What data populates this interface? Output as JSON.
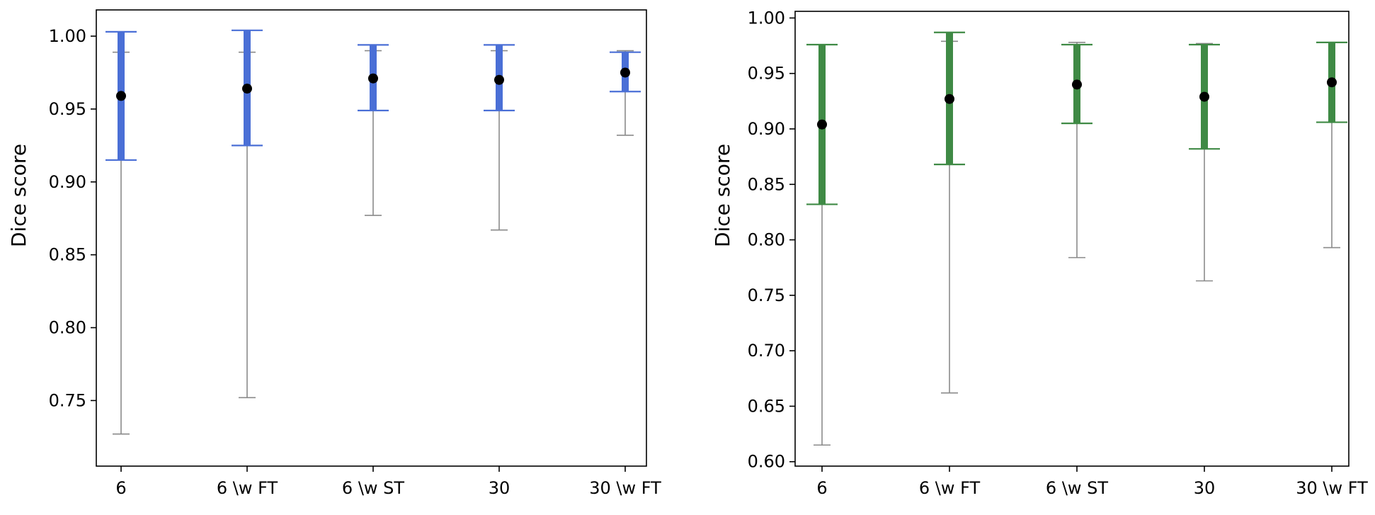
{
  "chart_data": [
    {
      "type": "errorbar",
      "categories": [
        "6",
        "6 \\w FT",
        "6 \\w ST",
        "30",
        "30 \\w FT"
      ],
      "ylabel": "Dice score",
      "xlabel": "",
      "ylim": [
        0.705,
        1.018
      ],
      "yticks": [
        "0.75",
        "0.80",
        "0.85",
        "0.90",
        "0.95",
        "1.00"
      ],
      "color": "#4a6fd6",
      "grid": false,
      "series": [
        {
          "mean": [
            0.959,
            0.964,
            0.971,
            0.97,
            0.975
          ],
          "box_low": [
            0.915,
            0.925,
            0.949,
            0.949,
            0.962
          ],
          "box_high": [
            1.003,
            1.004,
            0.994,
            0.994,
            0.989
          ],
          "whisker_low": [
            0.727,
            0.752,
            0.877,
            0.867,
            0.932
          ],
          "whisker_high": [
            0.989,
            0.989,
            0.99,
            0.99,
            0.99
          ]
        }
      ]
    },
    {
      "type": "errorbar",
      "categories": [
        "6",
        "6 \\w FT",
        "6 \\w ST",
        "30",
        "30 \\w FT"
      ],
      "ylabel": "Dice score",
      "xlabel": "",
      "ylim": [
        0.596,
        1.006
      ],
      "yticks": [
        "0.60",
        "0.65",
        "0.70",
        "0.75",
        "0.80",
        "0.85",
        "0.90",
        "0.95",
        "1.00"
      ],
      "color": "#3f8a45",
      "grid": false,
      "series": [
        {
          "mean": [
            0.904,
            0.927,
            0.94,
            0.929,
            0.942
          ],
          "box_low": [
            0.832,
            0.868,
            0.905,
            0.882,
            0.906
          ],
          "box_high": [
            0.976,
            0.987,
            0.976,
            0.976,
            0.978
          ],
          "whisker_low": [
            0.615,
            0.662,
            0.784,
            0.763,
            0.793
          ],
          "whisker_high": [
            0.976,
            0.979,
            0.978,
            0.977,
            0.978
          ]
        }
      ]
    }
  ]
}
